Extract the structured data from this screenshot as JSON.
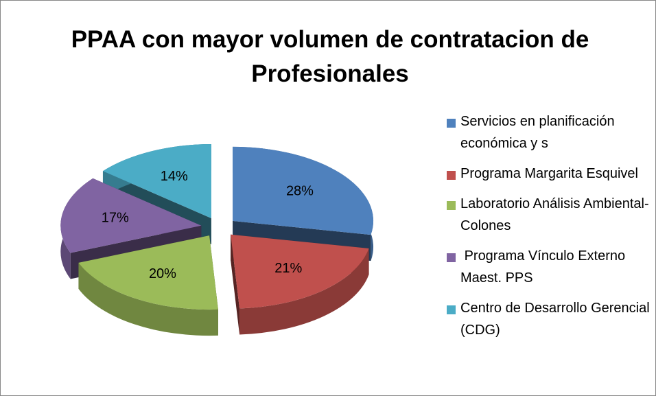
{
  "chart_data": {
    "type": "pie",
    "title": "PPAA con mayor volumen de contratacion de Profesionales",
    "categories": [
      "Servicios en planificación económica y s",
      "Programa Margarita Esquivel",
      "Laboratorio Análisis Ambiental-Colones",
      " Programa Vínculo Externo Maest. PPS",
      "Centro de Desarrollo Gerencial (CDG)"
    ],
    "values": [
      28,
      21,
      20,
      17,
      14
    ],
    "value_labels": [
      "28%",
      "21%",
      "20%",
      "17%",
      "14%"
    ],
    "colors": [
      "#4f81bd",
      "#c0504d",
      "#9bbb59",
      "#8064a2",
      "#4bacc6"
    ],
    "legend": "right"
  }
}
